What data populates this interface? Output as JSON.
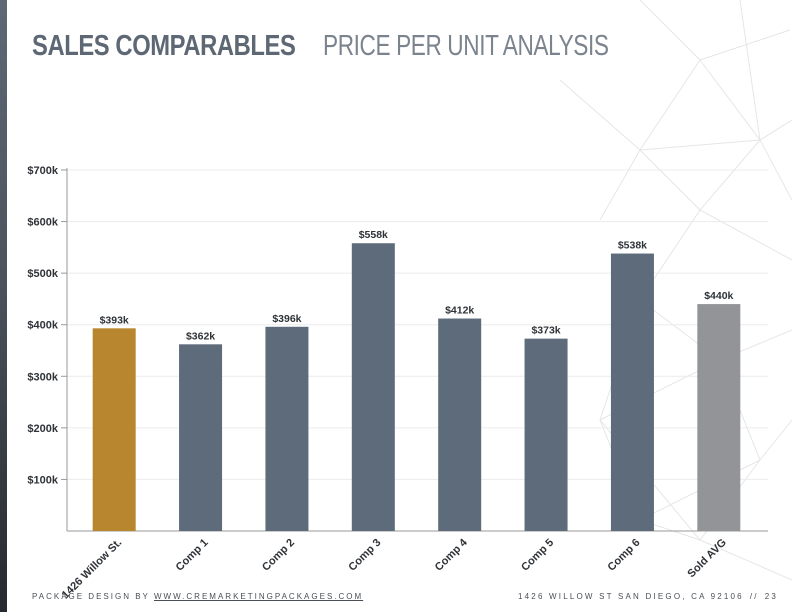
{
  "header": {
    "title_bold": "SALES COMPARABLES",
    "title_light": "PRICE PER UNIT ANALYSIS"
  },
  "footer": {
    "left_prefix": "PACKAGE DESIGN BY",
    "left_link": "WWW.CREMARKETINGPACKAGES.COM",
    "address": "1426 WILLOW ST SAN DIEGO, CA 92106",
    "separator": "//",
    "page_number": "23"
  },
  "colors": {
    "subject": "#b8862e",
    "comp": "#5d6b7a",
    "average": "#939498",
    "accent": "#5d6874"
  },
  "chart_data": {
    "type": "bar",
    "title": "",
    "xlabel": "",
    "ylabel": "",
    "categories": [
      "1426 Willow St.",
      "Comp 1",
      "Comp 2",
      "Comp 3",
      "Comp 4",
      "Comp 5",
      "Comp 6",
      "Sold AVG"
    ],
    "values": [
      393,
      362,
      396,
      558,
      412,
      373,
      538,
      440
    ],
    "value_labels": [
      "$393k",
      "$362k",
      "$396k",
      "$558k",
      "$412k",
      "$373k",
      "$538k",
      "$440k"
    ],
    "bar_colors": [
      "#b8862e",
      "#5d6b7a",
      "#5d6b7a",
      "#5d6b7a",
      "#5d6b7a",
      "#5d6b7a",
      "#5d6b7a",
      "#939498"
    ],
    "ylim": [
      0,
      700
    ],
    "yticks": [
      100,
      200,
      300,
      400,
      500,
      600,
      700
    ],
    "ytick_labels": [
      "$100k",
      "$200k",
      "$300k",
      "$400k",
      "$500k",
      "$600k",
      "$700k"
    ],
    "grid": true,
    "legend": "none"
  }
}
